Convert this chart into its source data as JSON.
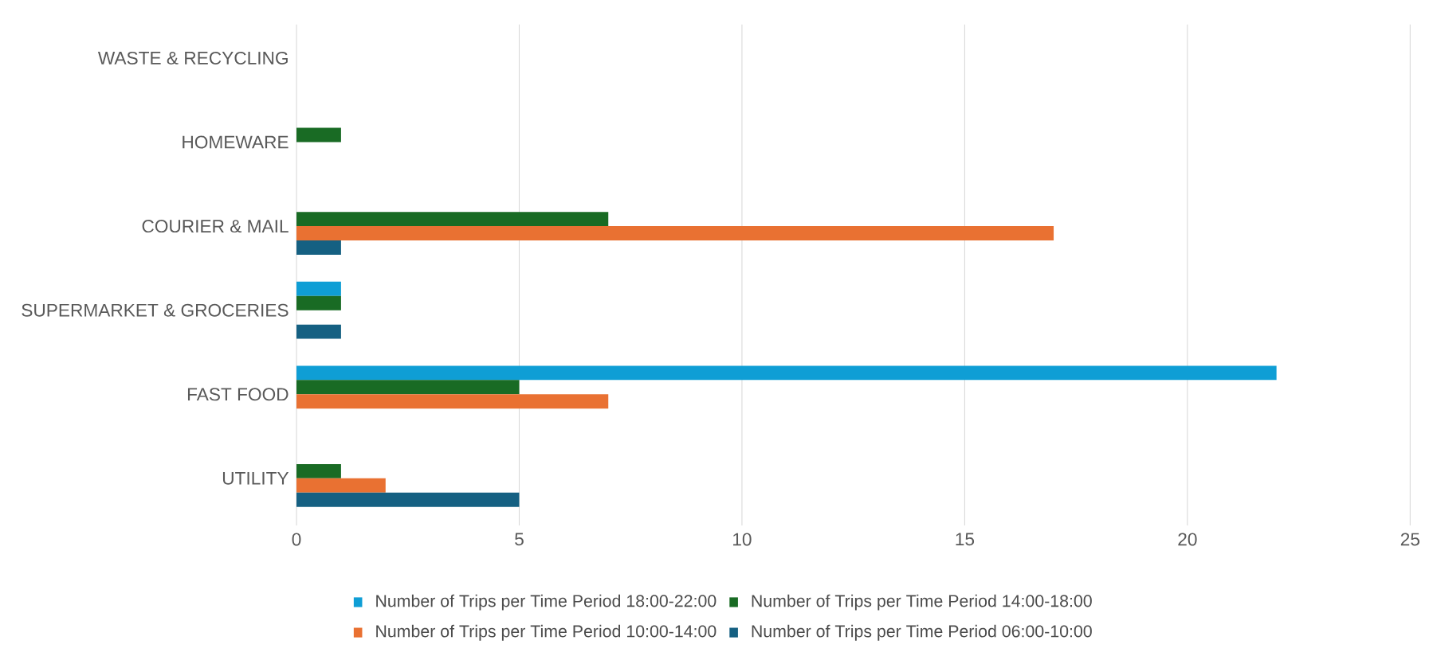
{
  "chart_data": {
    "type": "bar",
    "orientation": "horizontal",
    "categories": [
      "WASTE & RECYCLING",
      "HOMEWARE",
      "COURIER & MAIL",
      "SUPERMARKET & GROCERIES",
      "FAST FOOD",
      "UTILITY"
    ],
    "series": [
      {
        "name": "Number of Trips per Time Period 18:00-22:00",
        "color": "#0f9ed5",
        "values": [
          0,
          0,
          0,
          1,
          22,
          0
        ]
      },
      {
        "name": "Number of Trips per Time Period 14:00-18:00",
        "color": "#196b24",
        "values": [
          0,
          1,
          7,
          1,
          5,
          1
        ]
      },
      {
        "name": "Number of Trips per Time Period 10:00-14:00",
        "color": "#e97132",
        "values": [
          0,
          0,
          17,
          0,
          7,
          2
        ]
      },
      {
        "name": "Number of Trips per Time Period 06:00-10:00",
        "color": "#156082",
        "values": [
          0,
          0,
          1,
          1,
          0,
          5
        ]
      }
    ],
    "xlim": [
      0,
      25
    ],
    "xticks": [
      0,
      5,
      10,
      15,
      20,
      25
    ],
    "grid": "x",
    "legend": "bottom"
  }
}
